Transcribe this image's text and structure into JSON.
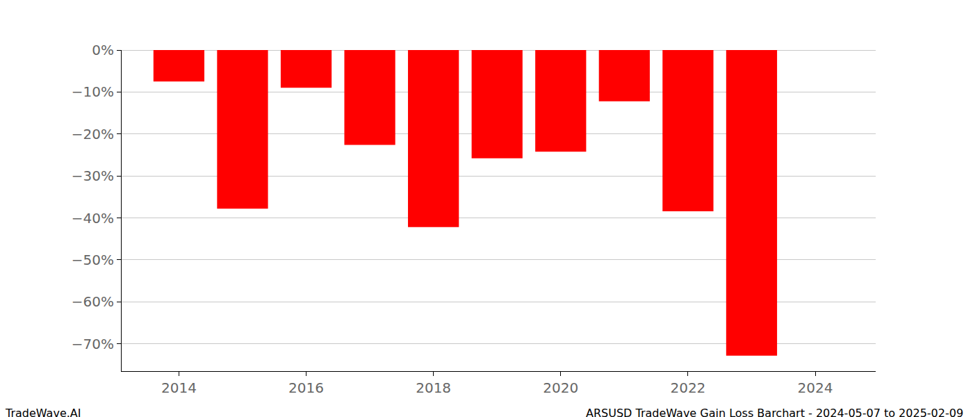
{
  "chart_data": {
    "type": "bar",
    "x": [
      2014,
      2015,
      2016,
      2017,
      2018,
      2019,
      2020,
      2021,
      2022,
      2023
    ],
    "values": [
      -7.5,
      -37.8,
      -9.0,
      -22.6,
      -42.2,
      -25.8,
      -24.2,
      -12.2,
      -38.4,
      -72.8
    ],
    "color": "#ff0000",
    "xlim": [
      2013.1,
      2024.95
    ],
    "xticks": [
      2014,
      2016,
      2018,
      2020,
      2022,
      2024
    ],
    "ylim": [
      -76.5,
      0
    ],
    "yticks": [
      {
        "value": 0,
        "label": "0%"
      },
      {
        "value": -10,
        "label": "−10%"
      },
      {
        "value": -20,
        "label": "−20%"
      },
      {
        "value": -30,
        "label": "−30%"
      },
      {
        "value": -40,
        "label": "−40%"
      },
      {
        "value": -50,
        "label": "−50%"
      },
      {
        "value": -60,
        "label": "−60%"
      },
      {
        "value": -70,
        "label": "−70%"
      }
    ],
    "grid": true,
    "footer_left": "TradeWave.AI",
    "footer_right": "ARSUSD TradeWave Gain Loss Barchart - 2024-05-07 to 2025-02-09"
  }
}
